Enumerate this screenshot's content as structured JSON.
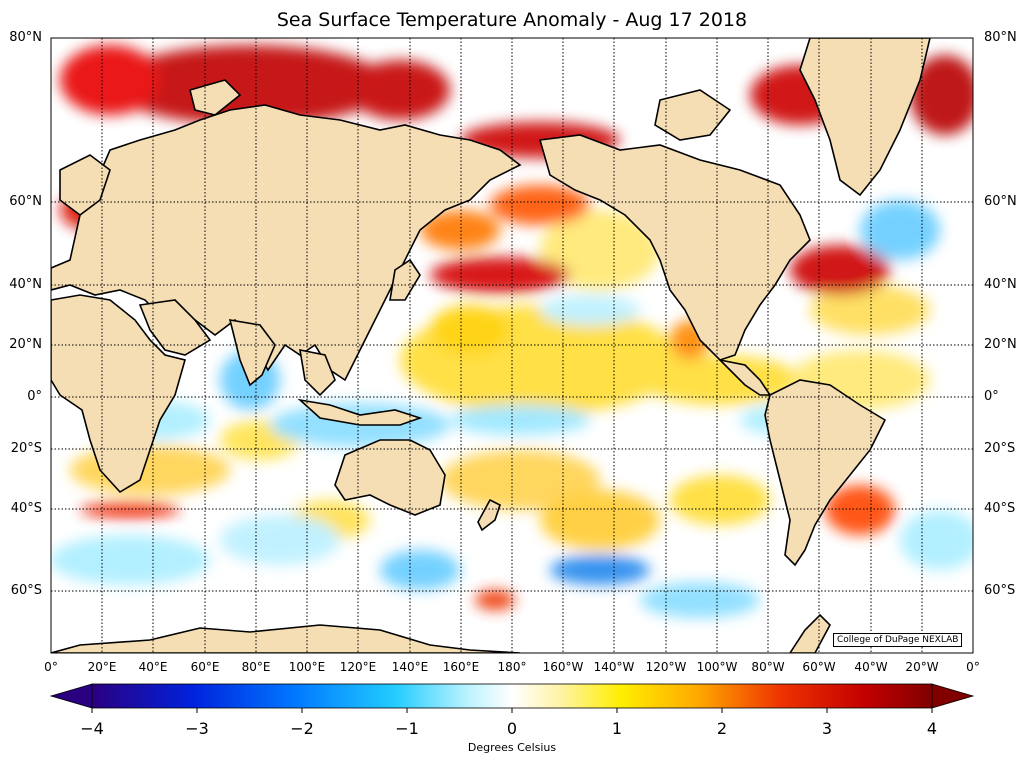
{
  "title": "Sea Surface Temperature Anomaly - Aug 17 2018",
  "credit": "College of DuPage NEXLAB",
  "lat_labels": [
    "80°N",
    "60°N",
    "40°N",
    "20°N",
    "0°",
    "20°S",
    "40°S",
    "60°S"
  ],
  "lon_labels": [
    "0°",
    "20°E",
    "40°E",
    "60°E",
    "80°E",
    "100°E",
    "120°E",
    "140°E",
    "160°E",
    "180°",
    "160°W",
    "140°W",
    "120°W",
    "100°W",
    "80°W",
    "60°W",
    "40°W",
    "20°W",
    "0°"
  ],
  "colorbar": {
    "label": "Degrees Celsius",
    "ticks": [
      "−4",
      "−3",
      "−2",
      "−1",
      "0",
      "1",
      "2",
      "3",
      "4"
    ],
    "min": -4,
    "max": 4
  },
  "colors": {
    "land": "#f5deb3",
    "coast": "#000000",
    "warm": "#cc0000",
    "cool": "#22aaff"
  }
}
